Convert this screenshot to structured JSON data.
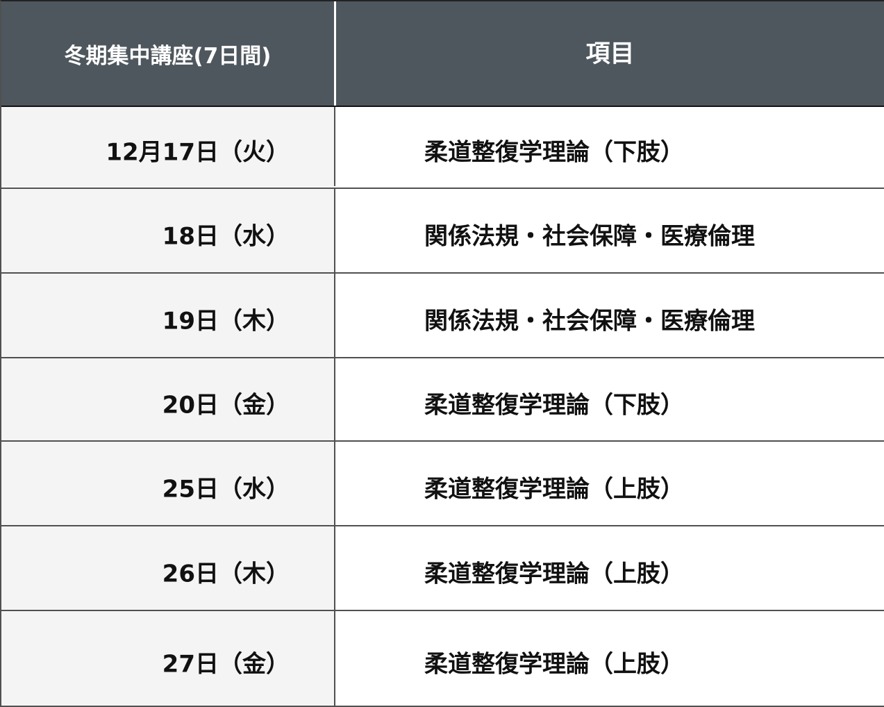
{
  "header": {
    "col1": "冬期集中講座(7日間)",
    "col2": "項目"
  },
  "rows": [
    {
      "date": "12月17日（火）",
      "item": "柔道整復学理論（下肢）"
    },
    {
      "date": "18日（水）",
      "item": "関係法規・社会保障・医療倫理"
    },
    {
      "date": "19日（木）",
      "item": "関係法規・社会保障・医療倫理"
    },
    {
      "date": "20日（金）",
      "item": "柔道整復学理論（下肢）"
    },
    {
      "date": "25日（水）",
      "item": "柔道整復学理論（上肢）"
    },
    {
      "date": "26日（木）",
      "item": "柔道整復学理論（上肢）"
    },
    {
      "date": "27日（金）",
      "item": "柔道整復学理論（上肢）"
    }
  ],
  "colors": {
    "header_bg": "#4f575e",
    "date_col_bg": "#f4f4f4",
    "border": "#505050"
  }
}
